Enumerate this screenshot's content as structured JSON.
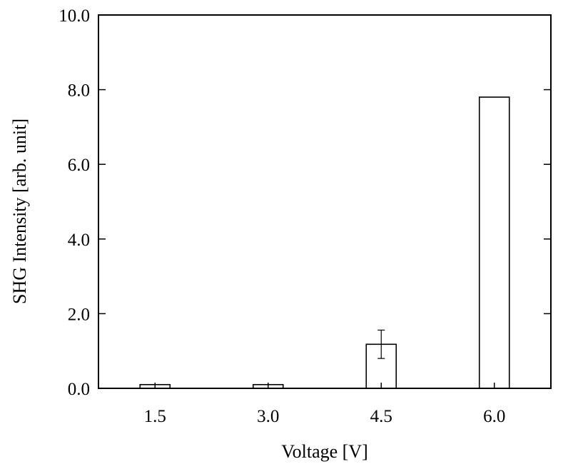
{
  "chart_data": {
    "type": "bar",
    "title": "",
    "xlabel": "Voltage [V]",
    "ylabel": "SHG Intensity [arb. unit]",
    "categories": [
      "1.5",
      "3.0",
      "4.5",
      "6.0"
    ],
    "values": [
      0.1,
      0.1,
      1.18,
      7.8
    ],
    "error_bars": [
      null,
      null,
      0.38,
      null
    ],
    "ylim": [
      0.0,
      10.0
    ],
    "yticks": [
      "0.0",
      "2.0",
      "4.0",
      "6.0",
      "8.0",
      "10.0"
    ],
    "ytick_values": [
      0,
      2,
      4,
      6,
      8,
      10
    ],
    "grid": false,
    "legend": "none",
    "colors": {
      "bar_fill": "#ffffff",
      "bar_stroke": "#000000"
    }
  }
}
